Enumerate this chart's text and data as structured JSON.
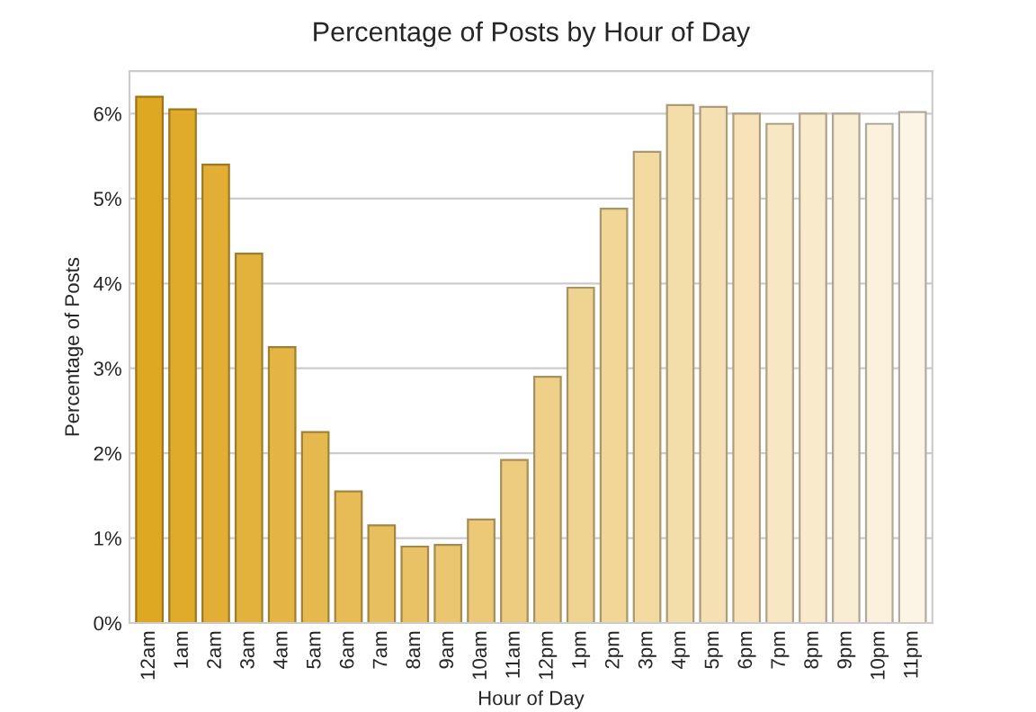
{
  "chart_data": {
    "type": "bar",
    "title": "Percentage of Posts by Hour of Day",
    "xlabel": "Hour of Day",
    "ylabel": "Percentage of Posts",
    "categories": [
      "12am",
      "1am",
      "2am",
      "3am",
      "4am",
      "5am",
      "6am",
      "7am",
      "8am",
      "9am",
      "10am",
      "11am",
      "12pm",
      "1pm",
      "2pm",
      "3pm",
      "4pm",
      "5pm",
      "6pm",
      "7pm",
      "8pm",
      "9pm",
      "10pm",
      "11pm"
    ],
    "values": [
      6.2,
      6.05,
      5.4,
      4.35,
      3.25,
      2.25,
      1.55,
      1.15,
      0.9,
      0.92,
      1.22,
      1.92,
      2.9,
      3.95,
      4.88,
      5.55,
      6.1,
      6.08,
      6.0,
      5.88,
      6.0,
      6.0,
      5.88,
      6.02
    ],
    "colors": [
      "#dfa823",
      "#e0ab2b",
      "#e2af34",
      "#e3b23c",
      "#e4b545",
      "#e5b94d",
      "#e7bc55",
      "#e8bf5e",
      "#e9c266",
      "#eac66f",
      "#ecc977",
      "#edcc7f",
      "#eed088",
      "#efd390",
      "#f1d698",
      "#f2daa1",
      "#f3dda9",
      "#f4e0b2",
      "#f6e3ba",
      "#f7e7c2",
      "#f8eacb",
      "#f9edd3",
      "#fbf1dc",
      "#fcf4e4"
    ],
    "ylim": [
      0,
      6.5
    ],
    "yticks": [
      {
        "value": 0,
        "label": "0%"
      },
      {
        "value": 1,
        "label": "1%"
      },
      {
        "value": 2,
        "label": "2%"
      },
      {
        "value": 3,
        "label": "3%"
      },
      {
        "value": 4,
        "label": "4%"
      },
      {
        "value": 5,
        "label": "5%"
      },
      {
        "value": 6,
        "label": "6%"
      }
    ],
    "grid": "y",
    "legend": false
  }
}
